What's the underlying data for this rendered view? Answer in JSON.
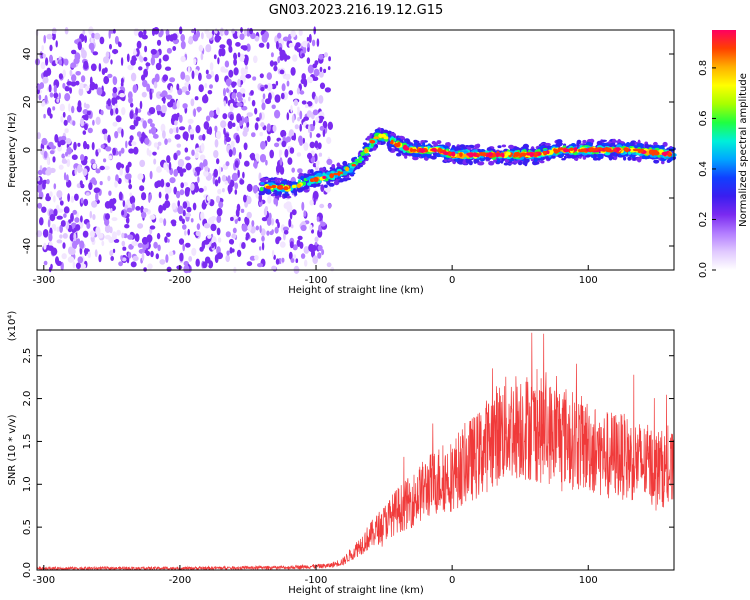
{
  "figure_title": "GN03.2023.216.19.12.G15",
  "colors": {
    "snr_line": "#f03a3a",
    "scatter_sparse": "#7b2bf0",
    "colormap": [
      "#f2e6ff",
      "#e0c8ff",
      "#b27cff",
      "#7a2af0",
      "#3a1ef0",
      "#1040ff",
      "#00a8ff",
      "#00f0d8",
      "#20ff40",
      "#a8ff00",
      "#ffff00",
      "#ffb000",
      "#ff4000",
      "#ff0060"
    ]
  },
  "chart_data": [
    {
      "type": "heatmap",
      "xlabel": "Height of straight line (km)",
      "ylabel": "Frequency (Hz)",
      "xlim": [
        -305,
        163
      ],
      "ylim": [
        -50,
        50
      ],
      "xticks": [
        -300,
        -200,
        -100,
        0,
        100
      ],
      "yticks": [
        -40,
        -20,
        0,
        20,
        40
      ],
      "grid": false,
      "noise_region_x": [
        -305,
        -95
      ],
      "signal_track": [
        {
          "x": -140,
          "y": -15
        },
        {
          "x": -120,
          "y": -16
        },
        {
          "x": -100,
          "y": -12
        },
        {
          "x": -90,
          "y": -11
        },
        {
          "x": -75,
          "y": -8
        },
        {
          "x": -65,
          "y": -2
        },
        {
          "x": -55,
          "y": 6
        },
        {
          "x": -48,
          "y": 5
        },
        {
          "x": -40,
          "y": 2
        },
        {
          "x": -30,
          "y": 0
        },
        {
          "x": -20,
          "y": 0
        },
        {
          "x": -10,
          "y": 0
        },
        {
          "x": 0,
          "y": -2
        },
        {
          "x": 20,
          "y": -2
        },
        {
          "x": 60,
          "y": -2
        },
        {
          "x": 80,
          "y": 0
        },
        {
          "x": 110,
          "y": 0
        },
        {
          "x": 130,
          "y": 0
        },
        {
          "x": 150,
          "y": -1
        },
        {
          "x": 163,
          "y": -2
        }
      ],
      "colorbar": {
        "label": "Normalized spectral amplitude",
        "range": [
          0.0,
          0.95
        ],
        "ticks": [
          "0.0",
          "0.2",
          "0.4",
          "0.6",
          "0.8"
        ]
      }
    },
    {
      "type": "line",
      "xlabel": "Height of straight line (km)",
      "ylabel": "SNR (10 * v/v)",
      "y_multiplier": "(x10⁴)",
      "xlim": [
        -305,
        163
      ],
      "ylim": [
        0,
        2.8
      ],
      "xticks": [
        -300,
        -200,
        -100,
        0,
        100
      ],
      "yticks": [
        "0.0",
        "0.5",
        "1.0",
        "1.5",
        "2.0",
        "2.5"
      ],
      "grid": false,
      "series": [
        {
          "envelope": [
            {
              "x": -305,
              "y": 0.02
            },
            {
              "x": -200,
              "y": 0.02
            },
            {
              "x": -120,
              "y": 0.03
            },
            {
              "x": -90,
              "y": 0.05
            },
            {
              "x": -80,
              "y": 0.1
            },
            {
              "x": -70,
              "y": 0.25
            },
            {
              "x": -60,
              "y": 0.4
            },
            {
              "x": -50,
              "y": 0.55
            },
            {
              "x": -40,
              "y": 0.7
            },
            {
              "x": -30,
              "y": 0.8
            },
            {
              "x": -20,
              "y": 0.95
            },
            {
              "x": -10,
              "y": 1.05
            },
            {
              "x": 0,
              "y": 1.1
            },
            {
              "x": 10,
              "y": 1.25
            },
            {
              "x": 20,
              "y": 1.35
            },
            {
              "x": 30,
              "y": 1.55
            },
            {
              "x": 40,
              "y": 1.65
            },
            {
              "x": 50,
              "y": 1.7
            },
            {
              "x": 60,
              "y": 1.65
            },
            {
              "x": 70,
              "y": 1.6
            },
            {
              "x": 80,
              "y": 1.6
            },
            {
              "x": 90,
              "y": 1.5
            },
            {
              "x": 100,
              "y": 1.45
            },
            {
              "x": 110,
              "y": 1.35
            },
            {
              "x": 120,
              "y": 1.35
            },
            {
              "x": 130,
              "y": 1.3
            },
            {
              "x": 140,
              "y": 1.25
            },
            {
              "x": 150,
              "y": 1.2
            },
            {
              "x": 163,
              "y": 1.15
            }
          ]
        }
      ]
    }
  ]
}
